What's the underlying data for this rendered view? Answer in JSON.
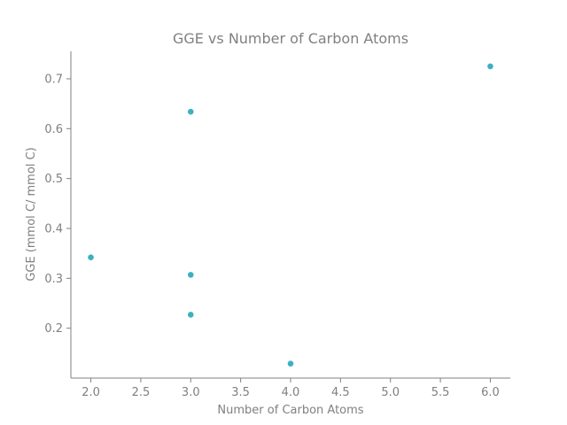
{
  "chart_data": {
    "type": "scatter",
    "title": "GGE vs Number of Carbon Atoms",
    "xlabel": "Number of Carbon Atoms",
    "ylabel": "GGE (mmol C/ mmol C)",
    "xlim": [
      1.8,
      6.2
    ],
    "ylim": [
      0.1,
      0.755
    ],
    "xticks": [
      "2.0",
      "2.5",
      "3.0",
      "3.5",
      "4.0",
      "4.5",
      "5.0",
      "5.5",
      "6.0"
    ],
    "yticks": [
      "0.2",
      "0.3",
      "0.4",
      "0.5",
      "0.6",
      "0.7"
    ],
    "grid": false,
    "marker_color": "#3bb0c3",
    "axis_color": "#808080",
    "points": [
      {
        "x": 2.0,
        "y": 0.342
      },
      {
        "x": 3.0,
        "y": 0.634
      },
      {
        "x": 3.0,
        "y": 0.307
      },
      {
        "x": 3.0,
        "y": 0.227
      },
      {
        "x": 4.0,
        "y": 0.129
      },
      {
        "x": 6.0,
        "y": 0.725
      }
    ]
  }
}
